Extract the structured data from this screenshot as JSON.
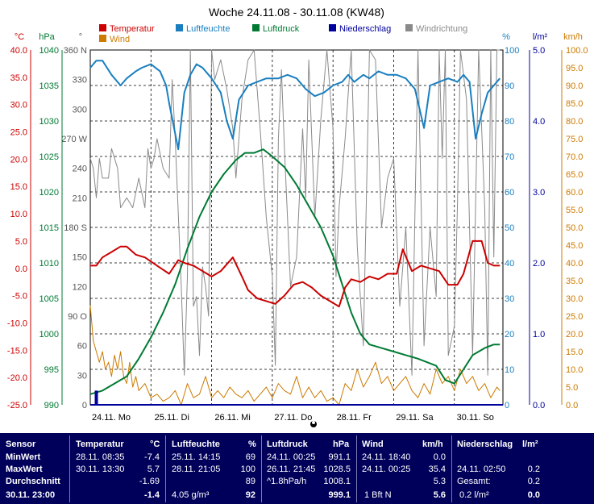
{
  "chart_data": {
    "type": "line",
    "title": "Woche 24.11.08 - 30.11.08 (KW48)",
    "x_ticks": [
      "24.11. Mo",
      "25.11. Di",
      "26.11. Mi",
      "27.11. Do",
      "28.11. Fr",
      "29.11. Sa",
      "30.11. So"
    ],
    "x_range_days": [
      0,
      6.8
    ],
    "legend": [
      {
        "name": "Temperatur",
        "color": "#cc0000"
      },
      {
        "name": "Luftfeuchte",
        "color": "#1a7fbf"
      },
      {
        "name": "Luftdruck",
        "color": "#007a33"
      },
      {
        "name": "Niederschlag",
        "color": "#00009a"
      },
      {
        "name": "Windrichtung",
        "color": "#8a8a8a"
      },
      {
        "name": "Wind",
        "color": "#cc7a00"
      }
    ],
    "axes": {
      "temp": {
        "unit": "°C",
        "ticks": [
          "40.0",
          "35.0",
          "30.0",
          "25.0",
          "20.0",
          "15.0",
          "10.0",
          "5.0",
          "0.0",
          "-5.0",
          "-10.0",
          "-15.0",
          "-20.0",
          "-25.0"
        ],
        "range": [
          -25,
          40
        ],
        "color": "#cc0000"
      },
      "press": {
        "unit": "hPa",
        "ticks": [
          "1040",
          "1035",
          "1030",
          "1025",
          "1020",
          "1015",
          "1010",
          "1005",
          "1000",
          "995",
          "990"
        ],
        "range": [
          990,
          1040
        ],
        "color": "#007a33"
      },
      "dir": {
        "unit": "°",
        "ticks": [
          "360 N",
          "330",
          "300",
          "270 W",
          "240",
          "210",
          "180 S",
          "150",
          "120",
          "90 O",
          "60",
          "30",
          "0"
        ],
        "range": [
          0,
          360
        ],
        "color": "#555555"
      },
      "hum": {
        "unit": "%",
        "ticks": [
          "100",
          "90",
          "80",
          "70",
          "60",
          "50",
          "40",
          "30",
          "20",
          "10",
          "0"
        ],
        "range": [
          0,
          100
        ],
        "color": "#1a7fbf"
      },
      "rain": {
        "unit": "l/m²",
        "ticks": [
          "5.0",
          "4.0",
          "3.0",
          "2.0",
          "1.0",
          "0.0"
        ],
        "range": [
          0,
          5
        ],
        "color": "#00009a"
      },
      "wind": {
        "unit": "km/h",
        "ticks": [
          "100.0",
          "95.0",
          "90.0",
          "85.0",
          "80.0",
          "75.0",
          "70.0",
          "65.0",
          "60.0",
          "55.0",
          "50.0",
          "45.0",
          "40.0",
          "35.0",
          "30.0",
          "25.0",
          "20.0",
          "15.0",
          "10.0",
          "5.0",
          "0.0"
        ],
        "range": [
          0,
          100
        ],
        "color": "#cc7a00"
      }
    },
    "series": [
      {
        "name": "Temperatur",
        "axis": "temp",
        "x": [
          0,
          0.1,
          0.2,
          0.35,
          0.5,
          0.6,
          0.75,
          0.9,
          1.1,
          1.3,
          1.45,
          1.55,
          1.7,
          1.85,
          2.0,
          2.15,
          2.35,
          2.5,
          2.6,
          2.75,
          2.9,
          3.05,
          3.2,
          3.35,
          3.5,
          3.65,
          3.8,
          3.95,
          4.1,
          4.2,
          4.3,
          4.45,
          4.6,
          4.75,
          4.9,
          5.05,
          5.15,
          5.3,
          5.45,
          5.6,
          5.75,
          5.9,
          6.05,
          6.15,
          6.3,
          6.45,
          6.55,
          6.65,
          6.75
        ],
        "y": [
          0.5,
          0.5,
          2.0,
          3.0,
          4.0,
          4.0,
          2.5,
          2.0,
          0.5,
          -1.0,
          1.5,
          1.0,
          0.5,
          -0.5,
          -1.5,
          -0.5,
          2.0,
          -1.5,
          -4.0,
          -5.5,
          -6.0,
          -6.5,
          -5.0,
          -3.0,
          -2.5,
          -3.5,
          -5.0,
          -6.0,
          -7.0,
          -3.5,
          -2.0,
          -2.5,
          -1.5,
          -2.0,
          -1.0,
          -1.0,
          3.5,
          -0.5,
          0.5,
          0.0,
          -0.5,
          -3.0,
          -3.0,
          -1.0,
          5.0,
          5.0,
          1.0,
          0.5,
          0.5
        ]
      },
      {
        "name": "Luftfeuchte",
        "axis": "hum",
        "x": [
          0,
          0.1,
          0.2,
          0.35,
          0.5,
          0.6,
          0.75,
          0.85,
          1.0,
          1.15,
          1.25,
          1.3,
          1.45,
          1.55,
          1.65,
          1.75,
          1.85,
          2.0,
          2.15,
          2.25,
          2.35,
          2.45,
          2.6,
          2.75,
          2.9,
          3.1,
          3.25,
          3.4,
          3.55,
          3.7,
          3.85,
          4.0,
          4.15,
          4.25,
          4.35,
          4.5,
          4.6,
          4.75,
          4.9,
          5.05,
          5.2,
          5.35,
          5.5,
          5.6,
          5.75,
          5.9,
          6.05,
          6.15,
          6.25,
          6.35,
          6.45,
          6.55,
          6.65,
          6.75
        ],
        "y": [
          95,
          97,
          97,
          93,
          90,
          92,
          94,
          95,
          96,
          94,
          90,
          85,
          72,
          88,
          93,
          96,
          95,
          92,
          88,
          80,
          75,
          86,
          90,
          91,
          92,
          92,
          93,
          92,
          89,
          87,
          88,
          90,
          91,
          93,
          91,
          93,
          92,
          94,
          93,
          93,
          92,
          89,
          78,
          90,
          91,
          92,
          91,
          93,
          91,
          75,
          82,
          88,
          90,
          92
        ]
      },
      {
        "name": "Luftdruck",
        "axis": "press",
        "x": [
          0,
          0.2,
          0.4,
          0.6,
          0.8,
          1.0,
          1.2,
          1.4,
          1.6,
          1.8,
          2.0,
          2.2,
          2.4,
          2.55,
          2.7,
          2.85,
          3.0,
          3.2,
          3.4,
          3.6,
          3.8,
          4.0,
          4.15,
          4.3,
          4.45,
          4.6,
          4.8,
          5.0,
          5.2,
          5.4,
          5.55,
          5.7,
          5.85,
          6.0,
          6.15,
          6.3,
          6.5,
          6.65,
          6.75
        ],
        "y": [
          991.5,
          992,
          993,
          994,
          996.5,
          999.5,
          1003,
          1007,
          1012,
          1016.5,
          1020,
          1022.5,
          1024.5,
          1025.5,
          1025.5,
          1026,
          1025,
          1023.5,
          1021,
          1018,
          1015,
          1011,
          1007,
          1003,
          1000,
          998.5,
          998,
          997.5,
          997,
          996.5,
          996,
          995.5,
          993.5,
          993,
          995,
          997,
          998,
          998.5,
          998.5
        ]
      },
      {
        "name": "Windrichtung",
        "axis": "dir",
        "x": [
          0,
          0.05,
          0.1,
          0.15,
          0.2,
          0.3,
          0.35,
          0.45,
          0.5,
          0.6,
          0.7,
          0.8,
          0.9,
          0.95,
          1.0,
          1.05,
          1.1,
          1.2,
          1.3,
          1.35,
          1.4,
          1.5,
          1.55,
          1.6,
          1.65,
          1.7,
          1.75,
          1.8,
          1.85,
          1.9,
          1.95,
          2.0,
          2.05,
          2.1,
          2.15,
          2.25,
          2.35,
          2.4,
          2.5,
          2.6,
          2.7,
          2.8,
          2.9,
          3.0,
          3.05,
          3.1,
          3.15,
          3.2,
          3.3,
          3.4,
          3.5,
          3.55,
          3.6,
          3.7,
          3.8,
          3.9,
          4.0,
          4.05,
          4.1,
          4.2,
          4.3,
          4.4,
          4.5,
          4.6,
          4.7,
          4.8,
          4.9,
          5.0,
          5.1,
          5.2,
          5.3,
          5.4,
          5.5,
          5.6,
          5.7,
          5.75,
          5.8,
          5.85,
          5.9,
          6.0,
          6.05,
          6.1,
          6.2,
          6.3,
          6.4,
          6.5,
          6.55,
          6.6,
          6.65,
          6.7,
          6.75
        ],
        "y": [
          250,
          240,
          210,
          250,
          230,
          230,
          260,
          240,
          200,
          210,
          200,
          230,
          200,
          260,
          240,
          250,
          270,
          240,
          230,
          330,
          270,
          120,
          30,
          130,
          360,
          100,
          110,
          50,
          140,
          120,
          90,
          360,
          330,
          340,
          350,
          320,
          280,
          230,
          310,
          350,
          360,
          280,
          190,
          130,
          40,
          270,
          340,
          260,
          120,
          150,
          280,
          210,
          350,
          190,
          290,
          360,
          280,
          130,
          200,
          270,
          360,
          160,
          60,
          360,
          350,
          180,
          230,
          250,
          100,
          180,
          30,
          360,
          60,
          180,
          110,
          360,
          250,
          360,
          50,
          80,
          200,
          360,
          310,
          50,
          360,
          200,
          30,
          360,
          150,
          360,
          360
        ]
      },
      {
        "name": "Wind",
        "axis": "wind",
        "x": [
          0,
          0.05,
          0.1,
          0.15,
          0.2,
          0.25,
          0.3,
          0.35,
          0.4,
          0.45,
          0.5,
          0.55,
          0.6,
          0.65,
          0.7,
          0.75,
          0.8,
          0.9,
          1.0,
          1.1,
          1.2,
          1.3,
          1.4,
          1.5,
          1.6,
          1.7,
          1.8,
          1.9,
          2.0,
          2.1,
          2.2,
          2.3,
          2.4,
          2.5,
          2.6,
          2.7,
          2.8,
          2.9,
          3.0,
          3.1,
          3.2,
          3.3,
          3.4,
          3.5,
          3.6,
          3.7,
          3.8,
          3.9,
          4.0,
          4.1,
          4.2,
          4.3,
          4.4,
          4.5,
          4.6,
          4.7,
          4.8,
          4.9,
          5.0,
          5.1,
          5.2,
          5.3,
          5.4,
          5.5,
          5.6,
          5.7,
          5.8,
          5.9,
          6.0,
          6.1,
          6.2,
          6.3,
          6.4,
          6.5,
          6.6,
          6.7,
          6.75
        ],
        "y": [
          28,
          18,
          15,
          12,
          15,
          10,
          12,
          8,
          14,
          10,
          15,
          8,
          6,
          12,
          5,
          8,
          4,
          6,
          2,
          3,
          1,
          2,
          4,
          0,
          6,
          2,
          3,
          8,
          2,
          4,
          2,
          5,
          3,
          2,
          4,
          1,
          3,
          5,
          2,
          6,
          4,
          3,
          8,
          2,
          5,
          2,
          4,
          1,
          2,
          0,
          6,
          4,
          10,
          5,
          8,
          12,
          6,
          8,
          4,
          6,
          8,
          4,
          2,
          6,
          3,
          10,
          6,
          8,
          4,
          10,
          6,
          8,
          4,
          6,
          2,
          5,
          4
        ]
      },
      {
        "name": "Niederschlag",
        "axis": "rain",
        "x": [
          0.1
        ],
        "y": [
          0.2
        ]
      }
    ]
  },
  "current_marker_label": "28.11.",
  "table": {
    "headers": {
      "sensor": "Sensor",
      "temp": "Temperatur",
      "temp_unit": "°C",
      "hum": "Luftfeuchte",
      "hum_unit": "%",
      "press": "Luftdruck",
      "press_unit": "hPa",
      "wind": "Wind",
      "wind_unit": "km/h",
      "rain": "Niederschlag",
      "rain_unit": "l/m²"
    },
    "rows": [
      {
        "label": "MinWert",
        "temp_time": "28.11.  08:35",
        "temp_val": "-7.4",
        "hum_time": "25.11.  14:15",
        "hum_val": "69",
        "press_time": "24.11.  00:25",
        "press_val": "991.1",
        "wind_time": "24.11.  18:40",
        "wind_val": "0.0",
        "rain_time": "",
        "rain_val": ""
      },
      {
        "label": "MaxWert",
        "temp_time": "30.11.  13:30",
        "temp_val": "5.7",
        "hum_time": "28.11.  21:05",
        "hum_val": "100",
        "press_time": "26.11.  21:45",
        "press_val": "1028.5",
        "wind_time": "24.11.  00:25",
        "wind_val": "35.4",
        "rain_time": "24.11.  02:50",
        "rain_val": "0.2"
      },
      {
        "label": "Durchschnitt",
        "temp_time": "",
        "temp_val": "-1.69",
        "hum_time": "",
        "hum_val": "89",
        "press_time": "^1.8hPa/h",
        "press_val": "1008.1",
        "wind_time": "",
        "wind_val": "5.3",
        "rain_time": "Gesamt:",
        "rain_val": "0.2"
      },
      {
        "label": "30.11.  23:00",
        "temp_time": "",
        "temp_val": "-1.4",
        "hum_time": "4.05 g/m³",
        "hum_val": "92",
        "press_time": "",
        "press_val": "999.1",
        "wind_time": "1 Bft N",
        "wind_val": "5.6",
        "rain_time": "0.2 l/m²",
        "rain_val": "0.0"
      }
    ]
  }
}
